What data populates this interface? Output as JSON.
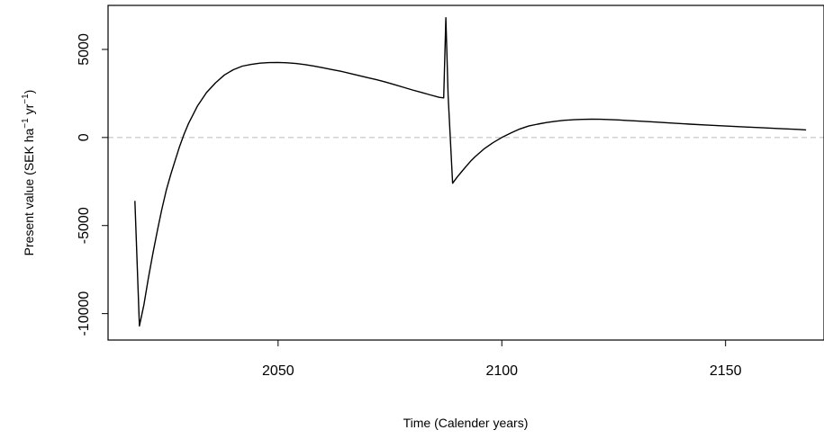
{
  "chart_data": {
    "type": "line",
    "title": "",
    "xlabel": "Time (Calender years)",
    "ylabel": {
      "prefix": "Present value (SEK ha",
      "exp1": "−1",
      "mid": " yr",
      "exp2": "−1",
      "suffix": ")"
    },
    "xlim": [
      2012,
      2172
    ],
    "ylim": [
      -11500,
      7500
    ],
    "x_ticks": [
      2050,
      2100,
      2150
    ],
    "y_ticks": [
      -10000,
      -5000,
      0,
      5000
    ],
    "y_tick_labels": [
      "-10000",
      "-5000",
      "0",
      "5000"
    ],
    "reference_line": {
      "y": 0,
      "style": "dashed",
      "color": "#bbbbbb"
    },
    "series": [
      {
        "color": "#000000",
        "x": [
          2018,
          2019,
          2020,
          2021,
          2022,
          2023,
          2024,
          2025,
          2026,
          2027,
          2028,
          2029,
          2030,
          2032,
          2034,
          2036,
          2038,
          2040,
          2042,
          2044,
          2046,
          2048,
          2050,
          2052,
          2054,
          2056,
          2058,
          2060,
          2062,
          2064,
          2066,
          2068,
          2070,
          2072,
          2074,
          2076,
          2078,
          2080,
          2082,
          2084,
          2086,
          2087,
          2087.5,
          2088,
          2089,
          2090,
          2091,
          2092,
          2093,
          2094,
          2096,
          2098,
          2100,
          2102,
          2104,
          2106,
          2108,
          2110,
          2112,
          2114,
          2116,
          2118,
          2120,
          2122,
          2124,
          2126,
          2128,
          2130,
          2134,
          2138,
          2142,
          2146,
          2150,
          2154,
          2158,
          2162,
          2166,
          2168
        ],
        "y": [
          -3600,
          -10700,
          -9500,
          -8000,
          -6600,
          -5300,
          -4100,
          -3000,
          -2100,
          -1300,
          -500,
          200,
          800,
          1800,
          2550,
          3100,
          3550,
          3850,
          4050,
          4150,
          4220,
          4250,
          4260,
          4240,
          4200,
          4140,
          4060,
          3960,
          3860,
          3760,
          3640,
          3520,
          3400,
          3280,
          3150,
          3000,
          2850,
          2700,
          2560,
          2420,
          2280,
          2250,
          6800,
          2400,
          -2600,
          -2250,
          -1950,
          -1650,
          -1350,
          -1100,
          -650,
          -300,
          0,
          250,
          480,
          650,
          760,
          850,
          920,
          980,
          1010,
          1030,
          1040,
          1035,
          1020,
          1000,
          970,
          940,
          880,
          820,
          760,
          700,
          650,
          600,
          560,
          510,
          460,
          430
        ]
      }
    ]
  }
}
